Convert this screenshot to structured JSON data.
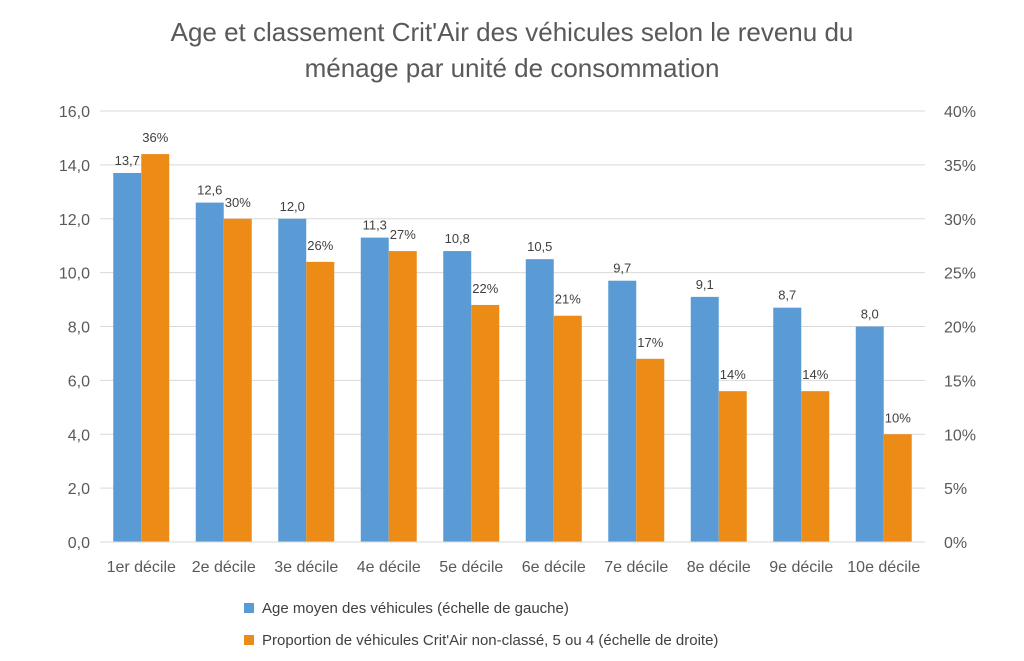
{
  "title_line1": "Age et classement Crit'Air des véhicules selon le revenu du",
  "title_line2": "ménage par unité de consommation",
  "colors": {
    "series1": "#5B9BD5",
    "series2": "#ED8B17",
    "grid": "#D9D9D9",
    "text": "#595959"
  },
  "chart_data": {
    "type": "bar",
    "categories": [
      "1er décile",
      "2e décile",
      "3e décile",
      "4e décile",
      "5e décile",
      "6e décile",
      "7e décile",
      "8e décile",
      "9e décile",
      "10e décile"
    ],
    "series": [
      {
        "name": "Age moyen des véhicules (échelle de gauche)",
        "axis": "left",
        "values": [
          13.7,
          12.6,
          12.0,
          11.3,
          10.8,
          10.5,
          9.7,
          9.1,
          8.7,
          8.0
        ],
        "labels": [
          "13,7",
          "12,6",
          "12,0",
          "11,3",
          "10,8",
          "10,5",
          "9,7",
          "9,1",
          "8,7",
          "8,0"
        ]
      },
      {
        "name": "Proportion de véhicules Crit'Air non-classé, 5 ou 4 (échelle de droite)",
        "axis": "right",
        "values": [
          0.36,
          0.3,
          0.26,
          0.27,
          0.22,
          0.21,
          0.17,
          0.14,
          0.14,
          0.1
        ],
        "labels": [
          "36%",
          "30%",
          "26%",
          "27%",
          "22%",
          "21%",
          "17%",
          "14%",
          "14%",
          "10%"
        ]
      }
    ],
    "y_left": {
      "lim": [
        0,
        16
      ],
      "ticks": [
        "0,0",
        "2,0",
        "4,0",
        "6,0",
        "8,0",
        "10,0",
        "12,0",
        "14,0",
        "16,0"
      ]
    },
    "y_right": {
      "lim": [
        0,
        0.4
      ],
      "ticks": [
        "0%",
        "5%",
        "10%",
        "15%",
        "20%",
        "25%",
        "30%",
        "35%",
        "40%"
      ]
    },
    "grid": true,
    "legend_position": "bottom"
  }
}
